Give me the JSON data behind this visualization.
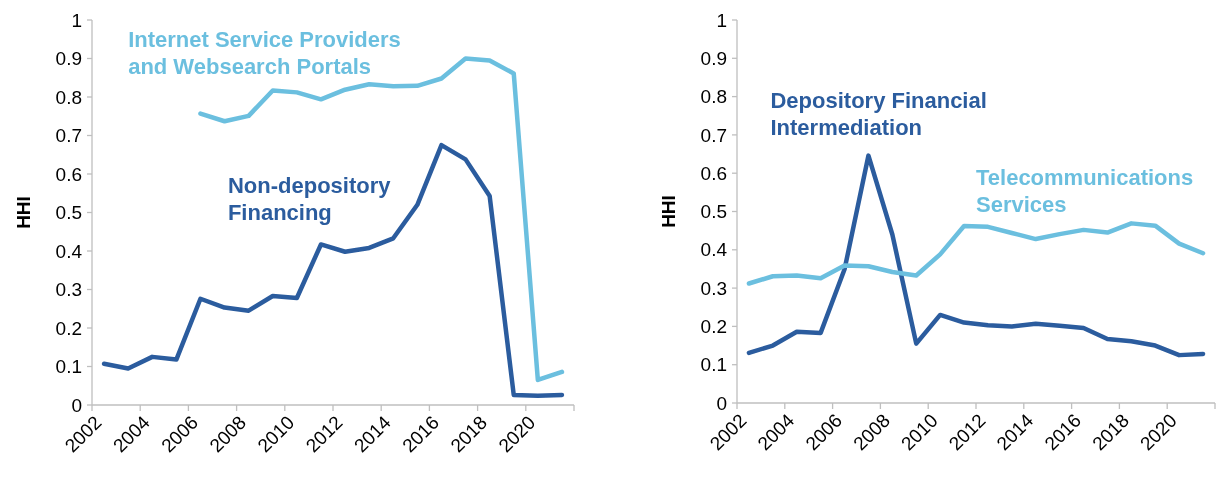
{
  "chart_data": [
    {
      "type": "line",
      "ylabel": "HHI",
      "xlim": [
        2002,
        2022
      ],
      "xticks": [
        2002,
        2004,
        2006,
        2008,
        2010,
        2012,
        2014,
        2016,
        2018,
        2020,
        {
          "value": 2022,
          "label": null
        }
      ],
      "ylim": [
        0,
        1
      ],
      "yticks": [
        0,
        0.1,
        0.2,
        0.3,
        0.4,
        0.5,
        0.6,
        0.7,
        0.8,
        0.9,
        1
      ],
      "grid": false,
      "marker": "none",
      "series": [
        {
          "name": "Internet Service Providers and Websearch Portals",
          "color": "#6bbfdf",
          "x": [
            2006.5,
            2007.5,
            2008.5,
            2009.5,
            2010.5,
            2011.5,
            2012.5,
            2013.5,
            2014.5,
            2015.5,
            2016.5,
            2017.5,
            2018.5,
            2019.5,
            2020.5,
            2021.5
          ],
          "values": [
            0.757,
            0.737,
            0.751,
            0.817,
            0.812,
            0.794,
            0.819,
            0.833,
            0.828,
            0.829,
            0.848,
            0.9,
            0.895,
            0.861,
            0.065,
            0.086
          ]
        },
        {
          "name": "Non-depository Financing",
          "color": "#2b5c9e",
          "x": [
            2002.5,
            2003.5,
            2004.5,
            2005.5,
            2006.5,
            2007.5,
            2008.5,
            2009.5,
            2010.5,
            2011.5,
            2012.5,
            2013.5,
            2014.5,
            2015.5,
            2016.5,
            2017.5,
            2018.5,
            2019.5,
            2020.5,
            2021.5
          ],
          "values": [
            0.107,
            0.095,
            0.125,
            0.118,
            0.276,
            0.253,
            0.245,
            0.283,
            0.278,
            0.417,
            0.398,
            0.408,
            0.433,
            0.52,
            0.675,
            0.638,
            0.543,
            0.026,
            0.024,
            0.026
          ]
        }
      ]
    },
    {
      "type": "line",
      "ylabel": "HHI",
      "xlim": [
        2002,
        2022
      ],
      "xticks": [
        2002,
        2004,
        2006,
        2008,
        2010,
        2012,
        2014,
        2016,
        2018,
        2020,
        {
          "value": 2022,
          "label": null
        }
      ],
      "ylim": [
        0,
        1
      ],
      "yticks": [
        0,
        0.1,
        0.2,
        0.3,
        0.4,
        0.5,
        0.6,
        0.7,
        0.8,
        0.9,
        1
      ],
      "grid": false,
      "marker": "none",
      "series": [
        {
          "name": "Depository Financial Intermediation",
          "color": "#2b5c9e",
          "x": [
            2002.5,
            2003.5,
            2004.5,
            2005.5,
            2006.5,
            2007.5,
            2008.5,
            2009.5,
            2010.5,
            2011.5,
            2012.5,
            2013.5,
            2014.5,
            2015.5,
            2016.5,
            2017.5,
            2018.5,
            2019.5,
            2020.5,
            2021.5
          ],
          "values": [
            0.131,
            0.15,
            0.186,
            0.183,
            0.349,
            0.646,
            0.44,
            0.155,
            0.23,
            0.21,
            0.203,
            0.2,
            0.207,
            0.202,
            0.196,
            0.167,
            0.161,
            0.15,
            0.125,
            0.128
          ]
        },
        {
          "name": "Telecommunications Services",
          "color": "#6bbfdf",
          "x": [
            2002.5,
            2003.5,
            2004.5,
            2005.5,
            2006.5,
            2007.5,
            2008.5,
            2009.5,
            2010.5,
            2011.5,
            2012.5,
            2013.5,
            2014.5,
            2015.5,
            2016.5,
            2017.5,
            2018.5,
            2019.5,
            2020.5,
            2021.5
          ],
          "values": [
            0.312,
            0.331,
            0.333,
            0.326,
            0.359,
            0.357,
            0.342,
            0.333,
            0.388,
            0.462,
            0.46,
            0.444,
            0.428,
            0.441,
            0.452,
            0.445,
            0.469,
            0.463,
            0.416,
            0.391
          ]
        }
      ]
    }
  ]
}
